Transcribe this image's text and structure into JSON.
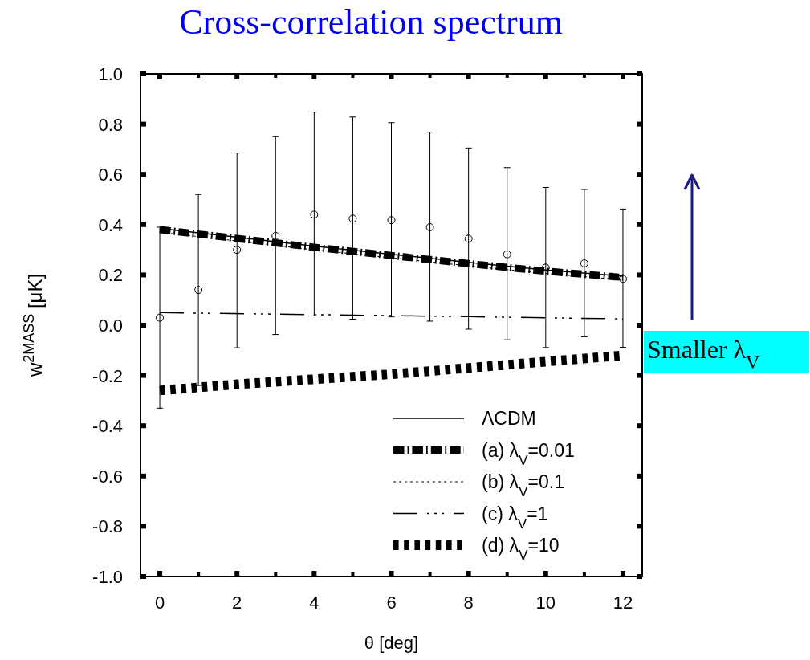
{
  "chart_data": {
    "type": "line",
    "title": "Cross-correlation spectrum",
    "xlabel": "θ [deg]",
    "ylabel": "w$^{2MASS}$ [μK]",
    "xlim": [
      -0.5,
      12.5
    ],
    "xticks": [
      0,
      {
        "value": 1,
        "label": null
      },
      2,
      {
        "value": 3,
        "label": null
      },
      4,
      {
        "value": 5,
        "label": null
      },
      6,
      {
        "value": 7,
        "label": null
      },
      8,
      {
        "value": 9,
        "label": null
      },
      10,
      {
        "value": 11,
        "label": null
      },
      12
    ],
    "ylim": [
      -1,
      1
    ],
    "yticks": [
      {
        "value": -1,
        "label": "-1.0"
      },
      -0.8,
      -0.6,
      -0.4,
      -0.2,
      {
        "value": 0,
        "label": "0.0"
      },
      0.2,
      0.4,
      0.6,
      0.8,
      {
        "value": 1,
        "label": "1.0"
      }
    ],
    "grid": false,
    "legend": "bottom right",
    "annotations": [
      "Smaller λ$_{V}$"
    ],
    "series": [
      {
        "type": "scatter",
        "color": "#000000",
        "marker": "circle",
        "x": [
          0,
          1,
          2,
          3,
          4,
          5,
          6,
          7,
          8,
          9,
          10,
          11,
          12
        ],
        "values": [
          0.03,
          0.14,
          0.3,
          0.355,
          0.44,
          0.424,
          0.418,
          0.39,
          0.344,
          0.282,
          0.229,
          0.246,
          0.184
        ],
        "errors": [
          [
            -0.33,
            0.39
          ],
          [
            -0.24,
            0.52
          ],
          [
            -0.09,
            0.685
          ],
          [
            -0.037,
            0.75
          ],
          [
            0.037,
            0.848
          ],
          [
            0.024,
            0.828
          ],
          [
            0.033,
            0.806
          ],
          [
            0.016,
            0.768
          ],
          [
            -0.016,
            0.705
          ],
          [
            -0.058,
            0.627
          ],
          [
            -0.089,
            0.548
          ],
          [
            -0.046,
            0.54
          ],
          [
            -0.088,
            0.462
          ]
        ]
      },
      {
        "name": "ΛCDM",
        "color": "#000000",
        "line_style": "solid",
        "x": [
          0,
          2,
          4,
          6,
          8,
          10,
          12
        ],
        "values": [
          0.385,
          0.35,
          0.315,
          0.282,
          0.25,
          0.22,
          0.195
        ]
      },
      {
        "name": "(a) λ$_{V}$=0.01",
        "color": "#000000",
        "line_style": "dashdot",
        "x": [
          0,
          2,
          4,
          6,
          8,
          10,
          12
        ],
        "values": [
          0.38,
          0.345,
          0.31,
          0.277,
          0.245,
          0.215,
          0.19
        ]
      },
      {
        "name": "(b) λ$_{V}$=0.1",
        "color": "#000000",
        "line_style": "dotted",
        "x": [
          0,
          2,
          4,
          6,
          8,
          10,
          12
        ],
        "values": [
          0.37,
          0.335,
          0.3,
          0.268,
          0.236,
          0.206,
          0.18
        ]
      },
      {
        "name": "(c) λ$_{V}$=1",
        "color": "#000000",
        "line_style": "dashdot",
        "x": [
          0,
          4,
          8,
          12
        ],
        "values": [
          0.05,
          0.042,
          0.034,
          0.025
        ]
      },
      {
        "name": "(d) λ$_{V}$=10",
        "color": "#000000",
        "line_style": "dashed",
        "x": [
          0,
          2,
          4,
          6,
          8,
          10,
          12
        ],
        "values": [
          -0.26,
          -0.235,
          -0.215,
          -0.195,
          -0.17,
          -0.145,
          -0.12
        ]
      }
    ]
  }
}
